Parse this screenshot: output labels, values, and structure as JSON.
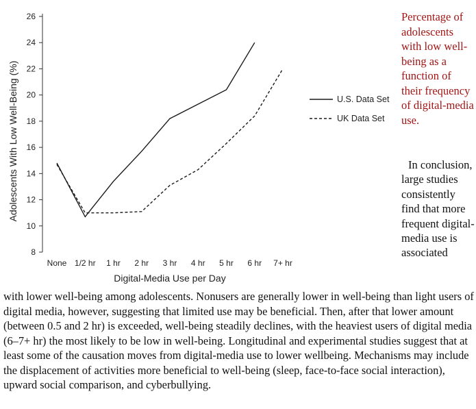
{
  "chart_data": {
    "type": "line",
    "categories": [
      "None",
      "1/2 hr",
      "1 hr",
      "2 hr",
      "3 hr",
      "4 hr",
      "5 hr",
      "6 hr",
      "7+ hr"
    ],
    "xlabel": "Digital-Media Use per Day",
    "ylabel": "Adolescents With Low Well-Being (%)",
    "ylim": [
      8,
      26
    ],
    "yticks": [
      8,
      10,
      12,
      14,
      16,
      18,
      20,
      22,
      24,
      26
    ],
    "grid": false,
    "legend": "right",
    "series": [
      {
        "name": "U.S. Data Set",
        "style": "solid",
        "values": [
          14.8,
          10.7,
          13.4,
          15.7,
          18.2,
          19.3,
          20.4,
          24.0,
          null
        ]
      },
      {
        "name": "UK Data Set",
        "style": "dashed",
        "values": [
          14.7,
          11.0,
          11.0,
          11.1,
          13.1,
          14.3,
          16.3,
          18.4,
          22.0
        ]
      }
    ]
  },
  "caption": "Percentage of adolescents with low well-being as a function of their frequency of digital-media use.",
  "side_text": "In conclusion, large studies consistently find that more frequent digital-media use is associated",
  "body_text": "with lower well-being among adolescents. Nonusers are generally lower in well-being than light users of digital media, however, suggesting that limited use may be beneficial. Then, after that lower amount (between 0.5 and 2 hr) is exceeded, well-being steadily declines, with the heaviest users of digital media (6–7+ hr) the most likely to be low in well-being. Longitudinal and experimental studies suggest that at least some of the causation moves from digital-media use to lower wellbeing. Mechanisms may include the displacement of activities more beneficial to well-being (sleep, face-to-face social interaction), upward social comparison, and cyberbullying."
}
